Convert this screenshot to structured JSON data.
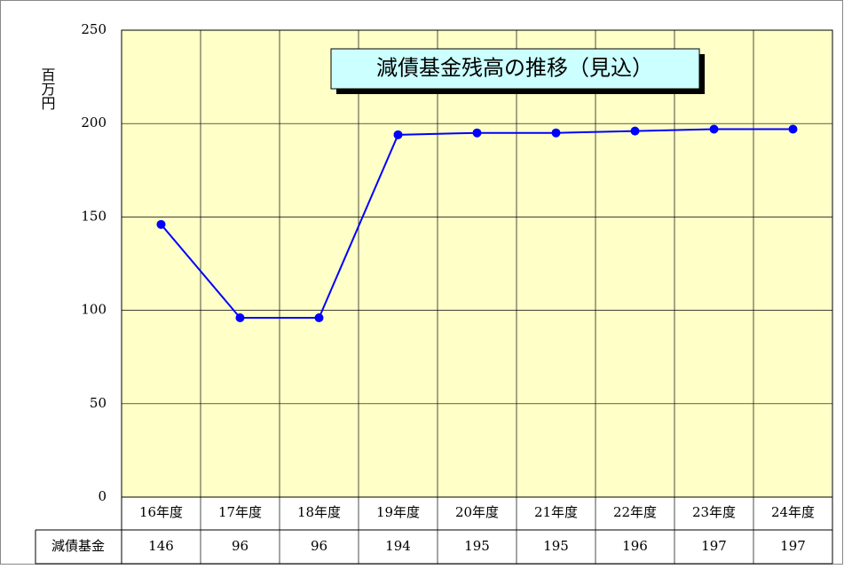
{
  "chart_data": {
    "type": "line",
    "title": "減債基金残高の推移（見込）",
    "ylabel": "百万円",
    "categories": [
      "16年度",
      "17年度",
      "18年度",
      "19年度",
      "20年度",
      "21年度",
      "22年度",
      "23年度",
      "24年度"
    ],
    "series": [
      {
        "name": "減債基金",
        "color": "#0000ff",
        "values": [
          146,
          96,
          96,
          194,
          195,
          195,
          196,
          197,
          197
        ]
      }
    ],
    "ylim": [
      0,
      250
    ],
    "yticks": [
      0,
      50,
      100,
      150,
      200,
      250
    ],
    "grid": true
  }
}
